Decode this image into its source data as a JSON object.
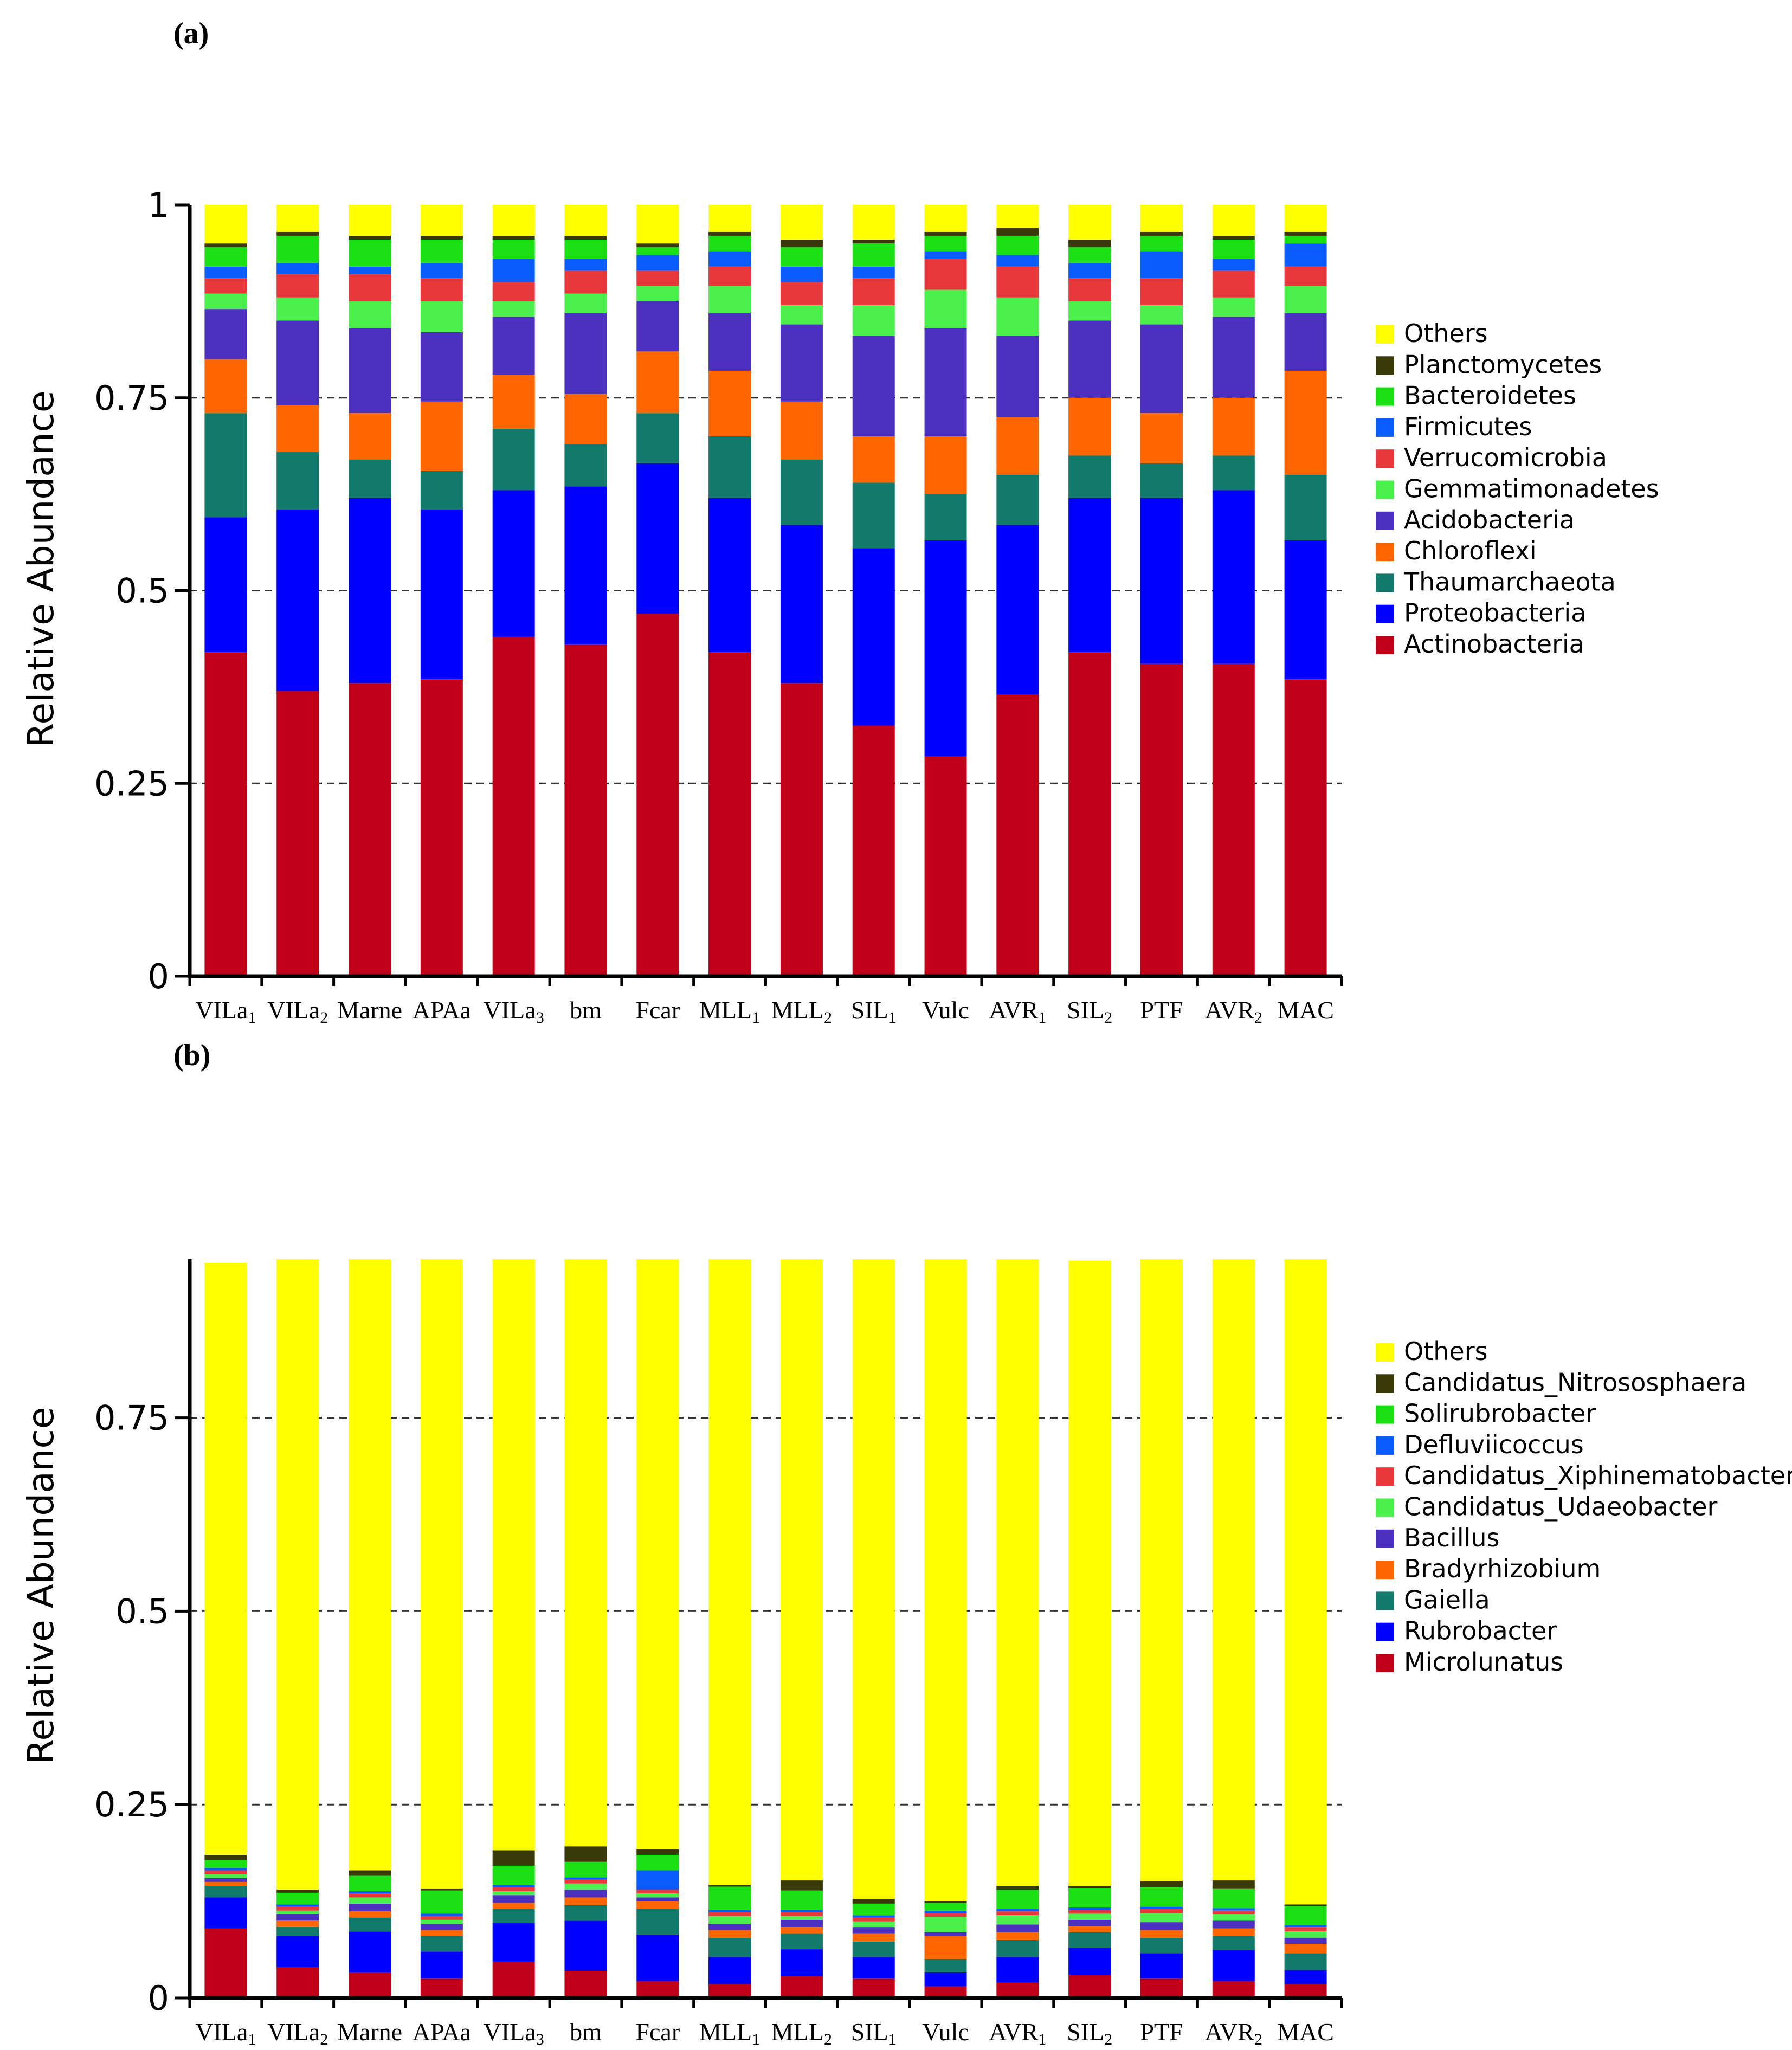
{
  "chart_data": [
    {
      "type": "bar",
      "stacked": true,
      "panel_label": "(a)",
      "ylabel": "Relative Abundance",
      "ylim": [
        0,
        1
      ],
      "yticks": [
        "0",
        "0.25",
        "0.5",
        "0.75",
        "1"
      ],
      "ytick_values": [
        0,
        0.25,
        0.5,
        0.75,
        1
      ],
      "grid": "dashed at 0.25, 0.5, 0.75",
      "legend_position": "right",
      "categories": [
        "VILa1",
        "VILa2",
        "Marne",
        "APAa",
        "VILa3",
        "bm",
        "Fcar",
        "MLL1",
        "MLL2",
        "SIL1",
        "Vulc",
        "AVR1",
        "SIL2",
        "PTF",
        "AVR2",
        "MAC"
      ],
      "category_labels": [
        {
          "base": "VILa",
          "sub": "1"
        },
        {
          "base": "VILa",
          "sub": "2"
        },
        {
          "base": "Marne",
          "sub": ""
        },
        {
          "base": "APAa",
          "sub": ""
        },
        {
          "base": "VILa",
          "sub": "3"
        },
        {
          "base": "bm",
          "sub": ""
        },
        {
          "base": "Fcar",
          "sub": ""
        },
        {
          "base": "MLL",
          "sub": "1"
        },
        {
          "base": "MLL",
          "sub": "2"
        },
        {
          "base": "SIL",
          "sub": "1"
        },
        {
          "base": "Vulc",
          "sub": ""
        },
        {
          "base": "AVR",
          "sub": "1"
        },
        {
          "base": "SIL",
          "sub": "2"
        },
        {
          "base": "PTF",
          "sub": ""
        },
        {
          "base": "AVR",
          "sub": "2"
        },
        {
          "base": "MAC",
          "sub": ""
        }
      ],
      "series": [
        {
          "name": "Actinobacteria",
          "color": "#C00018",
          "values": [
            0.42,
            0.37,
            0.38,
            0.385,
            0.44,
            0.43,
            0.47,
            0.42,
            0.38,
            0.325,
            0.285,
            0.365,
            0.42,
            0.405,
            0.405,
            0.385
          ]
        },
        {
          "name": "Proteobacteria",
          "color": "#0000FF",
          "values": [
            0.175,
            0.235,
            0.24,
            0.22,
            0.19,
            0.205,
            0.195,
            0.2,
            0.205,
            0.23,
            0.28,
            0.22,
            0.2,
            0.215,
            0.225,
            0.18
          ]
        },
        {
          "name": "Thaumarchaeota",
          "color": "#127A6A",
          "values": [
            0.135,
            0.075,
            0.05,
            0.05,
            0.08,
            0.055,
            0.065,
            0.08,
            0.085,
            0.085,
            0.06,
            0.065,
            0.055,
            0.045,
            0.045,
            0.085
          ]
        },
        {
          "name": "Chloroflexi",
          "color": "#FF6600",
          "values": [
            0.07,
            0.06,
            0.06,
            0.09,
            0.07,
            0.065,
            0.08,
            0.085,
            0.075,
            0.06,
            0.075,
            0.075,
            0.075,
            0.065,
            0.075,
            0.135
          ]
        },
        {
          "name": "Acidobacteria",
          "color": "#4B2FBE",
          "values": [
            0.065,
            0.11,
            0.11,
            0.09,
            0.075,
            0.105,
            0.065,
            0.075,
            0.1,
            0.13,
            0.14,
            0.105,
            0.1,
            0.115,
            0.105,
            0.075
          ]
        },
        {
          "name": "Gemmatimonadetes",
          "color": "#4CF04C",
          "values": [
            0.02,
            0.03,
            0.035,
            0.04,
            0.02,
            0.025,
            0.02,
            0.035,
            0.025,
            0.04,
            0.05,
            0.05,
            0.025,
            0.025,
            0.025,
            0.035
          ]
        },
        {
          "name": "Verrucomicrobia",
          "color": "#E8383C",
          "values": [
            0.02,
            0.03,
            0.035,
            0.03,
            0.025,
            0.03,
            0.02,
            0.025,
            0.03,
            0.035,
            0.04,
            0.04,
            0.03,
            0.035,
            0.035,
            0.025
          ]
        },
        {
          "name": "Firmicutes",
          "color": "#0A5CFF",
          "values": [
            0.015,
            0.015,
            0.01,
            0.02,
            0.03,
            0.015,
            0.02,
            0.02,
            0.02,
            0.015,
            0.01,
            0.015,
            0.02,
            0.035,
            0.015,
            0.03
          ]
        },
        {
          "name": "Bacteroidetes",
          "color": "#1AE014",
          "values": [
            0.025,
            0.035,
            0.035,
            0.03,
            0.025,
            0.025,
            0.01,
            0.02,
            0.025,
            0.03,
            0.02,
            0.025,
            0.02,
            0.02,
            0.025,
            0.01
          ]
        },
        {
          "name": "Planctomycetes",
          "color": "#3A3A08",
          "values": [
            0.005,
            0.005,
            0.005,
            0.005,
            0.005,
            0.005,
            0.005,
            0.005,
            0.01,
            0.005,
            0.005,
            0.01,
            0.01,
            0.005,
            0.005,
            0.005
          ]
        },
        {
          "name": "Others",
          "color": "#FFFF00",
          "values": [
            0.05,
            0.035,
            0.04,
            0.04,
            0.04,
            0.04,
            0.05,
            0.035,
            0.045,
            0.045,
            0.035,
            0.03,
            0.045,
            0.035,
            0.04,
            0.035
          ]
        }
      ]
    },
    {
      "type": "bar",
      "stacked": true,
      "panel_label": "(b)",
      "ylabel": "Relative Abundance",
      "ylim": [
        0,
        0.955
      ],
      "yticks": [
        "0",
        "0.25",
        "0.5",
        "0.75"
      ],
      "ytick_values": [
        0,
        0.25,
        0.5,
        0.75
      ],
      "grid": "dashed at 0.25, 0.5, 0.75",
      "legend_position": "right",
      "categories": [
        "VILa1",
        "VILa2",
        "Marne",
        "APAa",
        "VILa3",
        "bm",
        "Fcar",
        "MLL1",
        "MLL2",
        "SIL1",
        "Vulc",
        "AVR1",
        "SIL2",
        "PTF",
        "AVR2",
        "MAC"
      ],
      "category_labels": [
        {
          "base": "VILa",
          "sub": "1"
        },
        {
          "base": "VILa",
          "sub": "2"
        },
        {
          "base": "Marne",
          "sub": ""
        },
        {
          "base": "APAa",
          "sub": ""
        },
        {
          "base": "VILa",
          "sub": "3"
        },
        {
          "base": "bm",
          "sub": ""
        },
        {
          "base": "Fcar",
          "sub": ""
        },
        {
          "base": "MLL",
          "sub": "1"
        },
        {
          "base": "MLL",
          "sub": "2"
        },
        {
          "base": "SIL",
          "sub": "1"
        },
        {
          "base": "Vulc",
          "sub": ""
        },
        {
          "base": "AVR",
          "sub": "1"
        },
        {
          "base": "SIL",
          "sub": "2"
        },
        {
          "base": "PTF",
          "sub": ""
        },
        {
          "base": "AVR",
          "sub": "2"
        },
        {
          "base": "MAC",
          "sub": ""
        }
      ],
      "series": [
        {
          "name": "Microlunatus",
          "color": "#C00018",
          "values": [
            0.09,
            0.04,
            0.033,
            0.025,
            0.047,
            0.035,
            0.022,
            0.018,
            0.028,
            0.025,
            0.015,
            0.02,
            0.03,
            0.025,
            0.022,
            0.018
          ]
        },
        {
          "name": "Rubrobacter",
          "color": "#0000FF",
          "values": [
            0.04,
            0.04,
            0.053,
            0.035,
            0.05,
            0.065,
            0.06,
            0.035,
            0.035,
            0.028,
            0.018,
            0.033,
            0.035,
            0.033,
            0.04,
            0.018
          ]
        },
        {
          "name": "Gaiella",
          "color": "#127A6A",
          "values": [
            0.015,
            0.012,
            0.018,
            0.02,
            0.018,
            0.02,
            0.033,
            0.025,
            0.02,
            0.02,
            0.017,
            0.022,
            0.02,
            0.02,
            0.018,
            0.022
          ]
        },
        {
          "name": "Bradyrhizobium",
          "color": "#FF6600",
          "values": [
            0.005,
            0.008,
            0.008,
            0.008,
            0.008,
            0.01,
            0.01,
            0.01,
            0.008,
            0.01,
            0.03,
            0.01,
            0.008,
            0.01,
            0.01,
            0.012
          ]
        },
        {
          "name": "Bacillus",
          "color": "#4B2FBE",
          "values": [
            0.005,
            0.008,
            0.01,
            0.008,
            0.01,
            0.01,
            0.005,
            0.008,
            0.01,
            0.008,
            0.005,
            0.01,
            0.008,
            0.01,
            0.01,
            0.008
          ]
        },
        {
          "name": "Candidatus_Udaeobacter",
          "color": "#4CF04C",
          "values": [
            0.005,
            0.005,
            0.008,
            0.005,
            0.005,
            0.008,
            0.005,
            0.01,
            0.005,
            0.008,
            0.02,
            0.012,
            0.008,
            0.012,
            0.008,
            0.008
          ]
        },
        {
          "name": "Candidatus_Xiphinematobacter",
          "color": "#E8383C",
          "values": [
            0.005,
            0.005,
            0.005,
            0.005,
            0.005,
            0.005,
            0.005,
            0.005,
            0.005,
            0.005,
            0.005,
            0.005,
            0.005,
            0.005,
            0.005,
            0.005
          ]
        },
        {
          "name": "Defluviicoccus",
          "color": "#0A5CFF",
          "values": [
            0.003,
            0.003,
            0.003,
            0.003,
            0.003,
            0.003,
            0.025,
            0.003,
            0.003,
            0.003,
            0.003,
            0.003,
            0.003,
            0.003,
            0.003,
            0.003
          ]
        },
        {
          "name": "Solirubrobacter",
          "color": "#1AE014",
          "values": [
            0.01,
            0.015,
            0.02,
            0.03,
            0.025,
            0.02,
            0.02,
            0.03,
            0.025,
            0.015,
            0.01,
            0.025,
            0.025,
            0.025,
            0.025,
            0.025
          ]
        },
        {
          "name": "Candidatus_Nitrososphaera",
          "color": "#3A3A08",
          "values": [
            0.007,
            0.004,
            0.007,
            0.002,
            0.02,
            0.02,
            0.007,
            0.002,
            0.013,
            0.006,
            0.002,
            0.005,
            0.003,
            0.008,
            0.011,
            0.002
          ]
        },
        {
          "name": "Others",
          "color": "#FFFF00",
          "values": [
            0.765,
            0.815,
            0.79,
            0.814,
            0.764,
            0.759,
            0.763,
            0.809,
            0.803,
            0.827,
            0.83,
            0.81,
            0.808,
            0.804,
            0.803,
            0.834
          ]
        }
      ]
    }
  ]
}
